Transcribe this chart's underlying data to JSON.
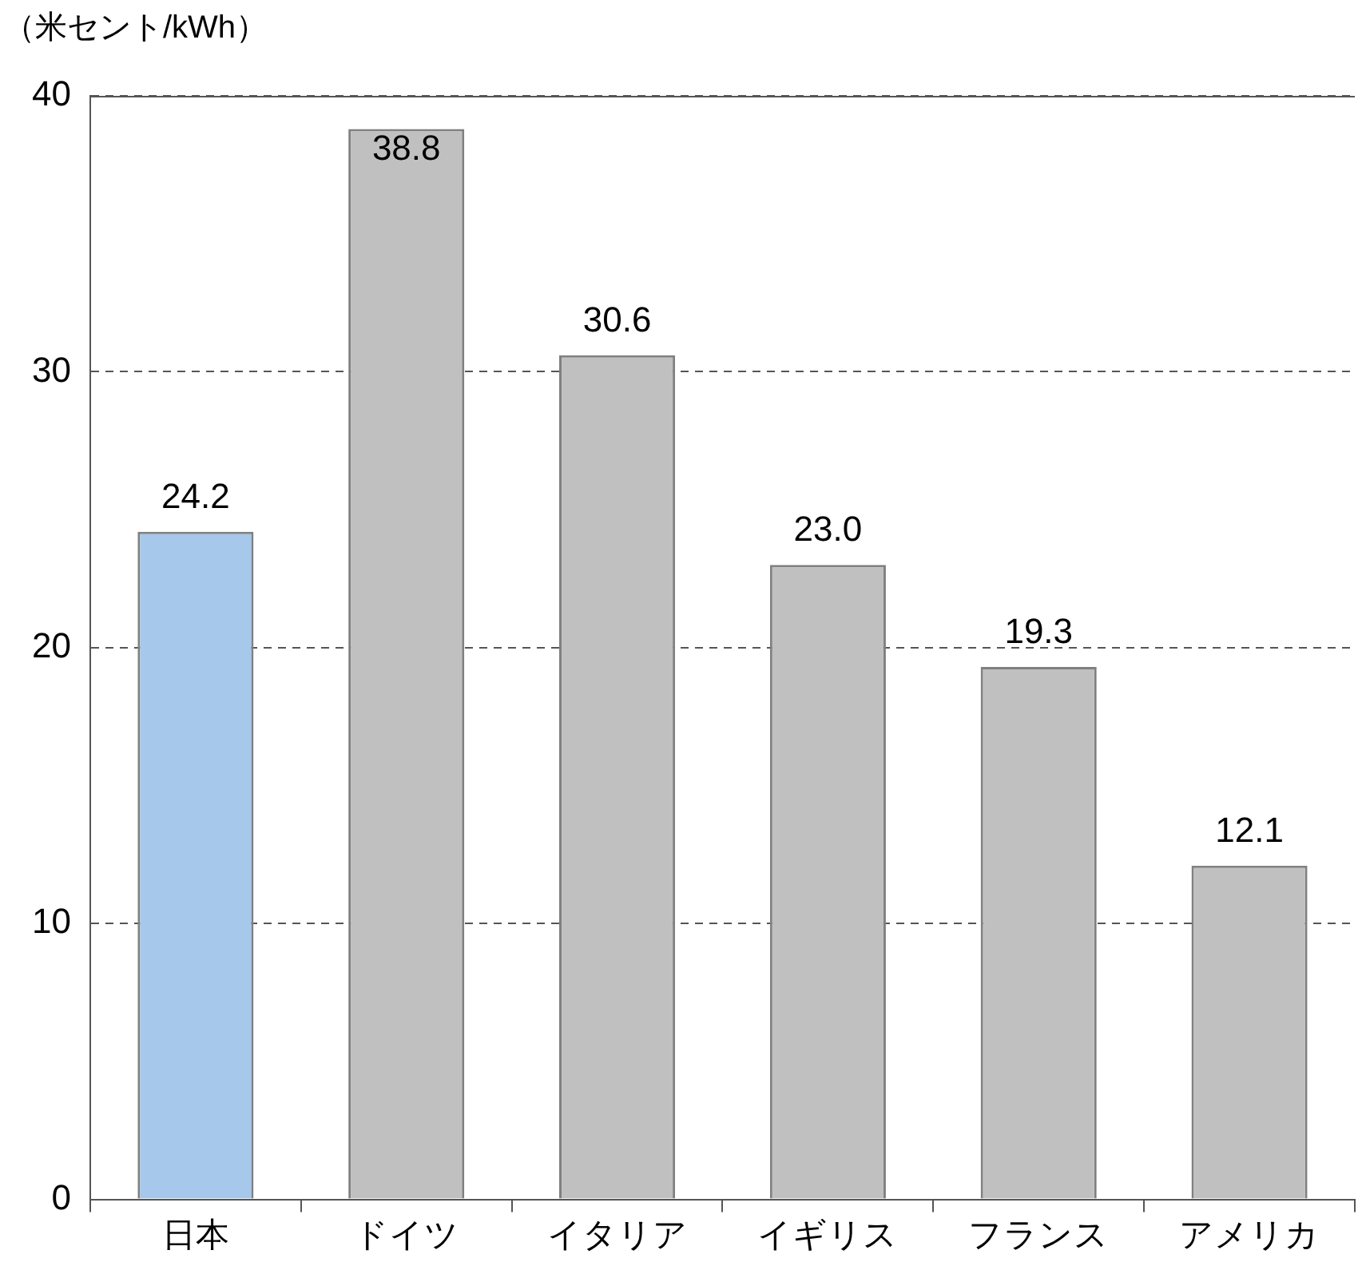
{
  "chart_data": {
    "type": "bar",
    "ylabel": "（米セント/kWh）",
    "categories": [
      "日本",
      "ドイツ",
      "イタリア",
      "イギリス",
      "フランス",
      "アメリカ"
    ],
    "values": [
      24.2,
      38.8,
      30.6,
      23.0,
      19.3,
      12.1
    ],
    "colors": [
      "#a6c8ea",
      "#c0c0c0",
      "#c0c0c0",
      "#c0c0c0",
      "#c0c0c0",
      "#c0c0c0"
    ],
    "value_labels": [
      "24.2",
      "38.8",
      "30.6",
      "23.0",
      "19.3",
      "12.1"
    ],
    "ylim": [
      0,
      40
    ],
    "yticks": [
      0,
      10,
      20,
      30,
      40
    ],
    "grid": "y",
    "legend": false
  }
}
